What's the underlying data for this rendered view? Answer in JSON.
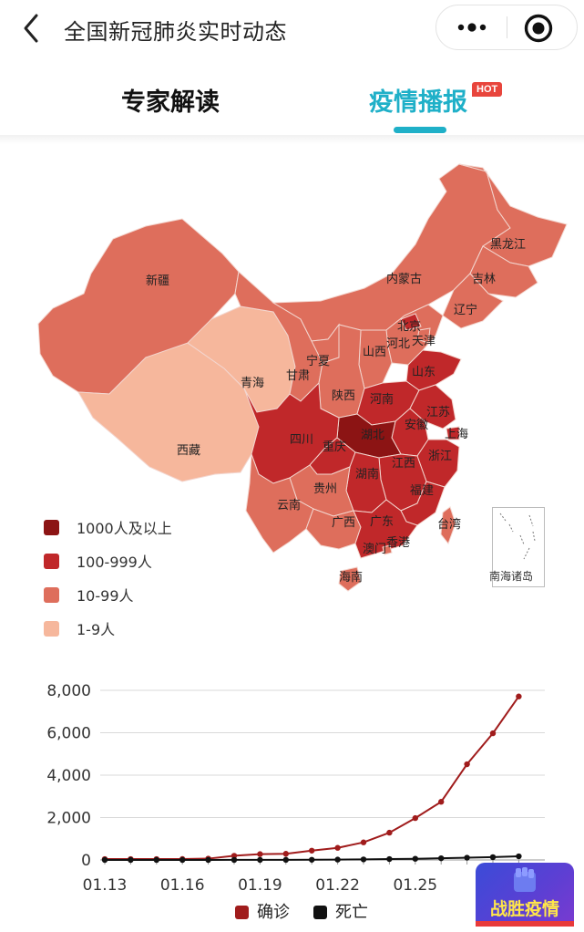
{
  "header": {
    "title": "全国新冠肺炎实时动态",
    "icons": [
      "back-icon",
      "more-icon",
      "target-icon"
    ]
  },
  "tabs": [
    {
      "label": "专家解读",
      "active": false
    },
    {
      "label": "疫情播报",
      "active": true,
      "badge": "HOT"
    }
  ],
  "colors": {
    "accent": "#1fb0c8",
    "level_1000_plus": "#8c1414",
    "level_100_999": "#c0282a",
    "level_10_99": "#de6e5c",
    "level_1_9": "#f6b79c",
    "confirmed": "#a01c1c",
    "deaths": "#111111"
  },
  "map": {
    "provinces": [
      {
        "name": "新疆",
        "level": "10-99"
      },
      {
        "name": "西藏",
        "level": "1-9"
      },
      {
        "name": "青海",
        "level": "1-9"
      },
      {
        "name": "甘肃",
        "level": "10-99"
      },
      {
        "name": "宁夏",
        "level": "10-99"
      },
      {
        "name": "内蒙古",
        "level": "10-99"
      },
      {
        "name": "黑龙江",
        "level": "10-99"
      },
      {
        "name": "吉林",
        "level": "10-99"
      },
      {
        "name": "辽宁",
        "level": "10-99"
      },
      {
        "name": "北京",
        "level": "100-999"
      },
      {
        "name": "天津",
        "level": "10-99"
      },
      {
        "name": "河北",
        "level": "10-99"
      },
      {
        "name": "山西",
        "level": "10-99"
      },
      {
        "name": "山东",
        "level": "100-999"
      },
      {
        "name": "陕西",
        "level": "10-99"
      },
      {
        "name": "河南",
        "level": "100-999"
      },
      {
        "name": "江苏",
        "level": "100-999"
      },
      {
        "name": "安徽",
        "level": "100-999"
      },
      {
        "name": "上海",
        "level": "100-999"
      },
      {
        "name": "湖北",
        "level": "1000+"
      },
      {
        "name": "四川",
        "level": "100-999"
      },
      {
        "name": "重庆",
        "level": "100-999"
      },
      {
        "name": "浙江",
        "level": "100-999"
      },
      {
        "name": "江西",
        "level": "100-999"
      },
      {
        "name": "湖南",
        "level": "100-999"
      },
      {
        "name": "贵州",
        "level": "10-99"
      },
      {
        "name": "福建",
        "level": "100-999"
      },
      {
        "name": "云南",
        "level": "10-99"
      },
      {
        "name": "广西",
        "level": "10-99"
      },
      {
        "name": "广东",
        "level": "100-999"
      },
      {
        "name": "台湾",
        "level": "10-99"
      },
      {
        "name": "香港",
        "level": "10-99"
      },
      {
        "name": "澳门",
        "level": "1-9"
      },
      {
        "name": "海南",
        "level": "10-99"
      }
    ],
    "south_sea_label": "南海诸岛"
  },
  "legend": [
    {
      "label": "1000人及以上",
      "color": "#8c1414"
    },
    {
      "label": "100-999人",
      "color": "#c0282a"
    },
    {
      "label": "10-99人",
      "color": "#de6e5c"
    },
    {
      "label": "1-9人",
      "color": "#f6b79c"
    }
  ],
  "chart_data": {
    "type": "line",
    "x": [
      "01.13",
      "01.14",
      "01.15",
      "01.16",
      "01.17",
      "01.18",
      "01.19",
      "01.20",
      "01.21",
      "01.22",
      "01.23",
      "01.24",
      "01.25",
      "01.26",
      "01.27",
      "01.28",
      "01.29"
    ],
    "x_tick_labels": [
      "01.13",
      "01.16",
      "01.19",
      "01.22",
      "01.25",
      "01"
    ],
    "series": [
      {
        "name": "确诊",
        "values": [
          41,
          41,
          41,
          45,
          62,
          198,
          275,
          291,
          440,
          571,
          830,
          1287,
          1975,
          2744,
          4515,
          5974,
          7711
        ]
      },
      {
        "name": "死亡",
        "values": [
          1,
          1,
          2,
          2,
          2,
          3,
          4,
          6,
          9,
          17,
          25,
          41,
          56,
          80,
          106,
          132,
          170
        ]
      }
    ],
    "ylim": [
      0,
      8000
    ],
    "y_ticks": [
      "0",
      "2,000",
      "4,000",
      "6,000",
      "8,000"
    ],
    "grid": true,
    "legend_position": "bottom"
  },
  "badge": {
    "label": "战胜疫情"
  }
}
